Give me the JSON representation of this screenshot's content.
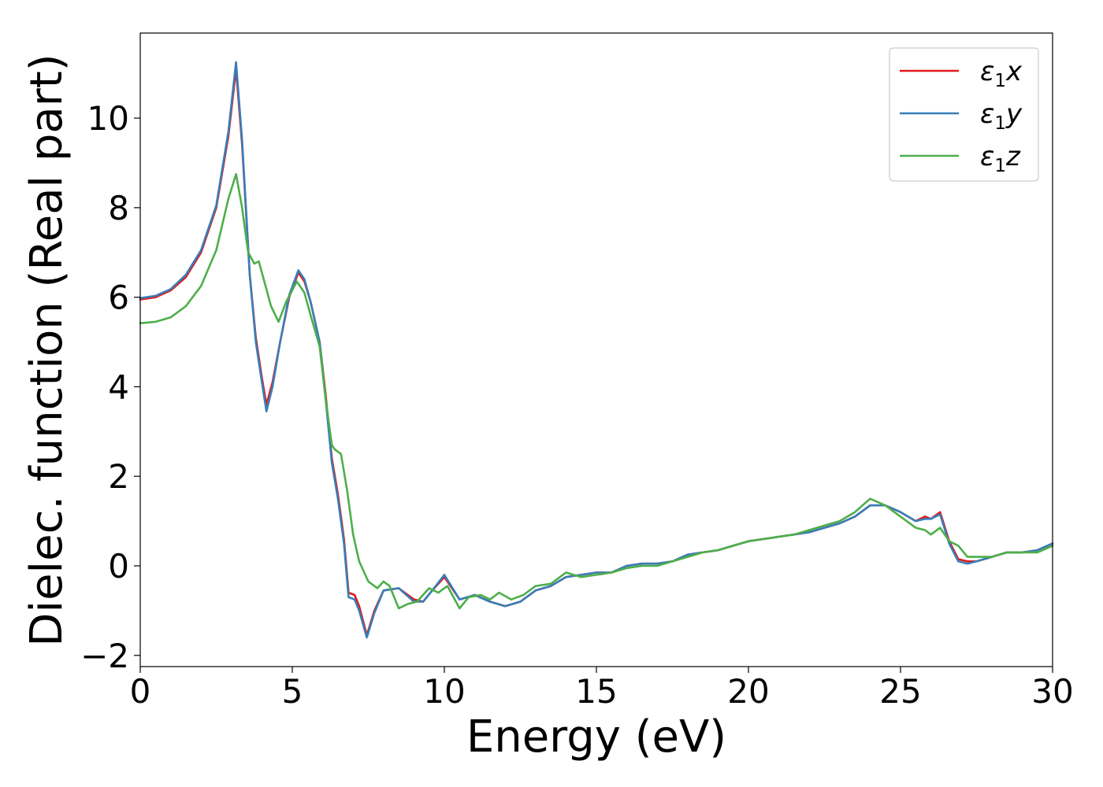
{
  "chart_data": {
    "type": "line",
    "title": "",
    "xlabel": "Energy (eV)",
    "ylabel": "Dielec. function (Real part)",
    "xlim": [
      0,
      30
    ],
    "ylim": [
      -2.25,
      11.9
    ],
    "xticks": [
      0,
      5,
      10,
      15,
      20,
      25,
      30
    ],
    "xtick_labels": [
      "0",
      "5",
      "10",
      "15",
      "20",
      "25",
      "30"
    ],
    "yticks": [
      -2,
      0,
      2,
      4,
      6,
      8,
      10
    ],
    "ytick_labels": [
      "−2",
      "0",
      "2",
      "4",
      "6",
      "8",
      "10"
    ],
    "grid": false,
    "legend_position": "top-right",
    "series": [
      {
        "name": "ε₁x",
        "legend_main": "ε",
        "legend_sub": "1",
        "legend_suffix": "x",
        "color": "#e41a1c",
        "points": [
          [
            0,
            5.95
          ],
          [
            0.5,
            6.0
          ],
          [
            1.0,
            6.15
          ],
          [
            1.5,
            6.45
          ],
          [
            2.0,
            7.0
          ],
          [
            2.5,
            8.0
          ],
          [
            2.9,
            9.6
          ],
          [
            3.15,
            11.1
          ],
          [
            3.35,
            9.4
          ],
          [
            3.6,
            6.5
          ],
          [
            3.8,
            5.1
          ],
          [
            4.0,
            4.2
          ],
          [
            4.15,
            3.6
          ],
          [
            4.35,
            4.1
          ],
          [
            4.6,
            5.0
          ],
          [
            4.9,
            6.0
          ],
          [
            5.2,
            6.55
          ],
          [
            5.4,
            6.35
          ],
          [
            5.6,
            5.9
          ],
          [
            5.9,
            5.0
          ],
          [
            6.1,
            3.8
          ],
          [
            6.3,
            2.4
          ],
          [
            6.5,
            1.6
          ],
          [
            6.7,
            0.6
          ],
          [
            6.85,
            -0.6
          ],
          [
            7.05,
            -0.65
          ],
          [
            7.2,
            -0.9
          ],
          [
            7.45,
            -1.55
          ],
          [
            7.7,
            -1.0
          ],
          [
            8.0,
            -0.55
          ],
          [
            8.5,
            -0.5
          ],
          [
            9.0,
            -0.75
          ],
          [
            9.3,
            -0.8
          ],
          [
            9.6,
            -0.55
          ],
          [
            10.0,
            -0.25
          ],
          [
            10.5,
            -0.75
          ],
          [
            11.0,
            -0.65
          ],
          [
            11.5,
            -0.8
          ],
          [
            12.0,
            -0.9
          ],
          [
            12.5,
            -0.8
          ],
          [
            13.0,
            -0.55
          ],
          [
            13.5,
            -0.45
          ],
          [
            14.0,
            -0.25
          ],
          [
            14.5,
            -0.2
          ],
          [
            15.0,
            -0.15
          ],
          [
            15.5,
            -0.15
          ],
          [
            16.0,
            0.0
          ],
          [
            16.5,
            0.05
          ],
          [
            17.0,
            0.05
          ],
          [
            17.5,
            0.1
          ],
          [
            18.0,
            0.25
          ],
          [
            18.5,
            0.3
          ],
          [
            19.0,
            0.35
          ],
          [
            19.5,
            0.45
          ],
          [
            20.0,
            0.55
          ],
          [
            20.5,
            0.6
          ],
          [
            21.0,
            0.65
          ],
          [
            21.5,
            0.7
          ],
          [
            22.0,
            0.75
          ],
          [
            22.5,
            0.85
          ],
          [
            23.0,
            0.95
          ],
          [
            23.5,
            1.1
          ],
          [
            24.0,
            1.35
          ],
          [
            24.5,
            1.35
          ],
          [
            25.0,
            1.2
          ],
          [
            25.5,
            1.0
          ],
          [
            25.8,
            1.1
          ],
          [
            26.0,
            1.05
          ],
          [
            26.3,
            1.2
          ],
          [
            26.6,
            0.55
          ],
          [
            26.9,
            0.15
          ],
          [
            27.2,
            0.1
          ],
          [
            27.5,
            0.1
          ],
          [
            28.0,
            0.2
          ],
          [
            28.5,
            0.3
          ],
          [
            29.0,
            0.3
          ],
          [
            29.5,
            0.35
          ],
          [
            30.0,
            0.5
          ]
        ]
      },
      {
        "name": "ε₁y",
        "legend_main": "ε",
        "legend_sub": "1",
        "legend_suffix": "y",
        "color": "#377eb8",
        "points": [
          [
            0,
            5.98
          ],
          [
            0.5,
            6.03
          ],
          [
            1.0,
            6.18
          ],
          [
            1.5,
            6.5
          ],
          [
            2.0,
            7.05
          ],
          [
            2.5,
            8.05
          ],
          [
            2.9,
            9.7
          ],
          [
            3.15,
            11.25
          ],
          [
            3.35,
            9.5
          ],
          [
            3.6,
            6.5
          ],
          [
            3.8,
            5.0
          ],
          [
            4.0,
            4.1
          ],
          [
            4.15,
            3.45
          ],
          [
            4.35,
            4.0
          ],
          [
            4.6,
            5.0
          ],
          [
            4.9,
            6.05
          ],
          [
            5.2,
            6.6
          ],
          [
            5.4,
            6.4
          ],
          [
            5.6,
            5.9
          ],
          [
            5.9,
            5.0
          ],
          [
            6.1,
            3.7
          ],
          [
            6.3,
            2.3
          ],
          [
            6.5,
            1.5
          ],
          [
            6.7,
            0.5
          ],
          [
            6.85,
            -0.7
          ],
          [
            7.05,
            -0.75
          ],
          [
            7.2,
            -1.0
          ],
          [
            7.45,
            -1.6
          ],
          [
            7.7,
            -1.05
          ],
          [
            8.0,
            -0.55
          ],
          [
            8.5,
            -0.5
          ],
          [
            9.0,
            -0.8
          ],
          [
            9.3,
            -0.8
          ],
          [
            9.6,
            -0.55
          ],
          [
            10.0,
            -0.2
          ],
          [
            10.5,
            -0.75
          ],
          [
            11.0,
            -0.65
          ],
          [
            11.5,
            -0.8
          ],
          [
            12.0,
            -0.9
          ],
          [
            12.5,
            -0.8
          ],
          [
            13.0,
            -0.55
          ],
          [
            13.5,
            -0.45
          ],
          [
            14.0,
            -0.25
          ],
          [
            14.5,
            -0.2
          ],
          [
            15.0,
            -0.15
          ],
          [
            15.5,
            -0.15
          ],
          [
            16.0,
            0.0
          ],
          [
            16.5,
            0.05
          ],
          [
            17.0,
            0.05
          ],
          [
            17.5,
            0.1
          ],
          [
            18.0,
            0.25
          ],
          [
            18.5,
            0.3
          ],
          [
            19.0,
            0.35
          ],
          [
            19.5,
            0.45
          ],
          [
            20.0,
            0.55
          ],
          [
            20.5,
            0.6
          ],
          [
            21.0,
            0.65
          ],
          [
            21.5,
            0.7
          ],
          [
            22.0,
            0.75
          ],
          [
            22.5,
            0.85
          ],
          [
            23.0,
            0.95
          ],
          [
            23.5,
            1.1
          ],
          [
            24.0,
            1.35
          ],
          [
            24.5,
            1.35
          ],
          [
            25.0,
            1.2
          ],
          [
            25.5,
            1.0
          ],
          [
            25.8,
            1.05
          ],
          [
            26.0,
            1.05
          ],
          [
            26.3,
            1.15
          ],
          [
            26.6,
            0.5
          ],
          [
            26.9,
            0.1
          ],
          [
            27.2,
            0.05
          ],
          [
            27.5,
            0.1
          ],
          [
            28.0,
            0.2
          ],
          [
            28.5,
            0.3
          ],
          [
            29.0,
            0.3
          ],
          [
            29.5,
            0.35
          ],
          [
            30.0,
            0.5
          ]
        ]
      },
      {
        "name": "ε₁z",
        "legend_main": "ε",
        "legend_sub": "1",
        "legend_suffix": "z",
        "color": "#4daf4a",
        "points": [
          [
            0,
            5.42
          ],
          [
            0.5,
            5.45
          ],
          [
            1.0,
            5.55
          ],
          [
            1.5,
            5.8
          ],
          [
            2.0,
            6.25
          ],
          [
            2.5,
            7.05
          ],
          [
            2.9,
            8.2
          ],
          [
            3.15,
            8.75
          ],
          [
            3.35,
            8.0
          ],
          [
            3.55,
            7.0
          ],
          [
            3.75,
            6.75
          ],
          [
            3.9,
            6.8
          ],
          [
            4.1,
            6.3
          ],
          [
            4.3,
            5.8
          ],
          [
            4.55,
            5.45
          ],
          [
            4.8,
            5.9
          ],
          [
            5.15,
            6.35
          ],
          [
            5.4,
            6.1
          ],
          [
            5.6,
            5.6
          ],
          [
            5.9,
            4.9
          ],
          [
            6.1,
            3.7
          ],
          [
            6.3,
            2.7
          ],
          [
            6.4,
            2.6
          ],
          [
            6.6,
            2.5
          ],
          [
            6.8,
            1.7
          ],
          [
            7.0,
            0.7
          ],
          [
            7.2,
            0.1
          ],
          [
            7.5,
            -0.35
          ],
          [
            7.8,
            -0.5
          ],
          [
            8.0,
            -0.35
          ],
          [
            8.2,
            -0.45
          ],
          [
            8.5,
            -0.95
          ],
          [
            8.8,
            -0.85
          ],
          [
            9.1,
            -0.8
          ],
          [
            9.5,
            -0.5
          ],
          [
            9.8,
            -0.6
          ],
          [
            10.1,
            -0.45
          ],
          [
            10.5,
            -0.95
          ],
          [
            10.8,
            -0.7
          ],
          [
            11.2,
            -0.65
          ],
          [
            11.5,
            -0.75
          ],
          [
            11.8,
            -0.6
          ],
          [
            12.2,
            -0.75
          ],
          [
            12.6,
            -0.65
          ],
          [
            13.0,
            -0.45
          ],
          [
            13.5,
            -0.4
          ],
          [
            14.0,
            -0.15
          ],
          [
            14.5,
            -0.25
          ],
          [
            15.0,
            -0.2
          ],
          [
            15.5,
            -0.15
          ],
          [
            16.0,
            -0.05
          ],
          [
            16.5,
            0.0
          ],
          [
            17.0,
            0.0
          ],
          [
            17.5,
            0.1
          ],
          [
            18.0,
            0.2
          ],
          [
            18.5,
            0.3
          ],
          [
            19.0,
            0.35
          ],
          [
            19.5,
            0.45
          ],
          [
            20.0,
            0.55
          ],
          [
            20.5,
            0.6
          ],
          [
            21.0,
            0.65
          ],
          [
            21.5,
            0.7
          ],
          [
            22.0,
            0.8
          ],
          [
            22.5,
            0.9
          ],
          [
            23.0,
            1.0
          ],
          [
            23.5,
            1.2
          ],
          [
            24.0,
            1.5
          ],
          [
            24.5,
            1.35
          ],
          [
            25.0,
            1.1
          ],
          [
            25.5,
            0.85
          ],
          [
            25.8,
            0.8
          ],
          [
            26.0,
            0.7
          ],
          [
            26.3,
            0.85
          ],
          [
            26.6,
            0.55
          ],
          [
            26.9,
            0.45
          ],
          [
            27.2,
            0.2
          ],
          [
            27.6,
            0.2
          ],
          [
            28.0,
            0.2
          ],
          [
            28.5,
            0.3
          ],
          [
            29.0,
            0.3
          ],
          [
            29.5,
            0.3
          ],
          [
            30.0,
            0.45
          ]
        ]
      }
    ]
  }
}
